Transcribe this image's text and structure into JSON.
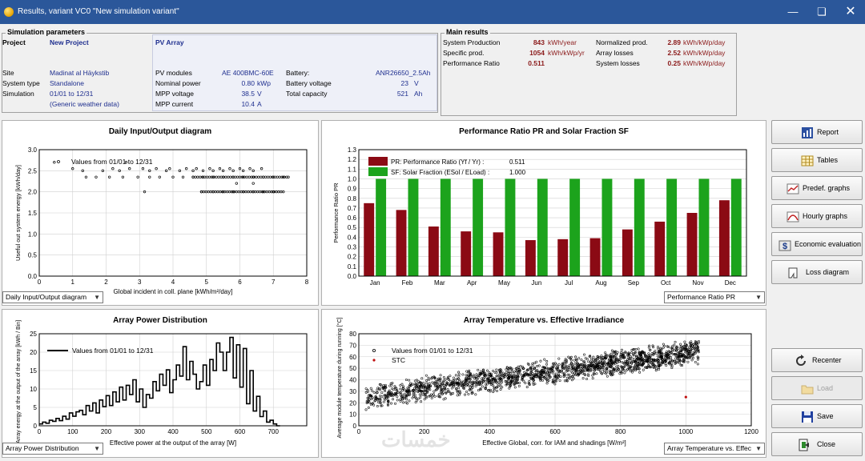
{
  "window": {
    "title": "Results, variant VC0  \"New simulation variant\""
  },
  "sim_params": {
    "legend": "Simulation parameters",
    "project_label": "Project",
    "project_value": "New Project",
    "site_label": "Site",
    "site_value": "Madinat al Häykstib",
    "system_type_label": "System type",
    "system_type_value": "Standalone",
    "simulation_label": "Simulation",
    "simulation_value": "01/01 to 12/31",
    "weather_value": "(Generic weather data)"
  },
  "pv_array": {
    "title": "PV Array",
    "modules_label": "PV modules",
    "modules_value": "AE 400BMC-60E",
    "nominal_power_label": "Nominal power",
    "nominal_power_value": "0.80",
    "nominal_power_unit": "kWp",
    "mpp_voltage_label": "MPP voltage",
    "mpp_voltage_value": "38.5",
    "mpp_voltage_unit": "V",
    "mpp_current_label": "MPP current",
    "mpp_current_value": "10.4",
    "mpp_current_unit": "A",
    "battery_label": "Battery:",
    "battery_value": "ANR26650_2.5Ah",
    "battery_voltage_label": "Battery voltage",
    "battery_voltage_value": "23",
    "battery_voltage_unit": "V",
    "total_capacity_label": "Total capacity",
    "total_capacity_value": "521",
    "total_capacity_unit": "Ah"
  },
  "main_results": {
    "legend": "Main results",
    "system_production_label": "System Production",
    "system_production_value": "843",
    "system_production_unit": "kWh/year",
    "specific_prod_label": "Specific prod.",
    "specific_prod_value": "1054",
    "specific_prod_unit": "kWh/kWp/yr",
    "performance_ratio_label": "Performance Ratio",
    "performance_ratio_value": "0.511",
    "normalized_prod_label": "Normalized prod.",
    "normalized_prod_value": "2.89",
    "normalized_prod_unit": "kWh/kWp/day",
    "array_losses_label": "Array losses",
    "array_losses_value": "2.52",
    "array_losses_unit": "kWh/kWp/day",
    "system_losses_label": "System losses",
    "system_losses_value": "0.25",
    "system_losses_unit": "kWh/kWp/day"
  },
  "charts": {
    "daily": {
      "title": "Daily Input/Output diagram",
      "legend": "Values from 01/01 to 12/31",
      "xlabel": "Global incident in coll. plane [kWh/m²/day]",
      "ylabel": "Useful out system energy [kWh/day]",
      "combo": "Daily Input/Output diagram"
    },
    "pr": {
      "title": "Performance Ratio PR  and Solar Fraction SF",
      "legend_pr": "PR: Performance Ratio (Yf / Yr) :",
      "legend_pr_value": "0.511",
      "legend_sf": "SF: Solar Fraction (ESol / ELoad) :",
      "legend_sf_value": "1.000",
      "ylabel": "Performance Ratio PR",
      "combo": "Performance Ratio PR"
    },
    "power": {
      "title": "Array Power Distribution",
      "legend": "Values from 01/01 to 12/31",
      "xlabel": "Effective power at the output of the array [W]",
      "ylabel": "Array energy at the output of the array [kWh / Bin]",
      "combo": "Array Power Distribution"
    },
    "temp": {
      "title": "Array Temperature vs. Effective Irradiance",
      "legend_values": "Values from 01/01 to 12/31",
      "legend_stc": "STC",
      "xlabel": "Effective Global, corr. for IAM and shadings [W/m²]",
      "ylabel": "Average module temperature during running [°C]",
      "combo": "Array Temperature vs. Effec"
    }
  },
  "chart_data": [
    {
      "type": "scatter",
      "title": "Daily Input/Output diagram",
      "xlabel": "Global incident in coll. plane [kWh/m²/day]",
      "ylabel": "Useful out system energy [kWh/day]",
      "xlim": [
        0,
        8
      ],
      "ylim": [
        0,
        3.0
      ],
      "xticks": [
        0,
        1,
        2,
        3,
        4,
        5,
        6,
        7,
        8
      ],
      "yticks": [
        0,
        0.5,
        1.0,
        1.5,
        2.0,
        2.5,
        3.0
      ],
      "legend": [
        "Values from 01/01 to 12/31"
      ],
      "levels": [
        {
          "y": 2.7,
          "x": [
            0.45,
            2.6
          ]
        },
        {
          "y": 2.55,
          "x": [
            1.0,
            2.2,
            2.7,
            3.1,
            3.5,
            3.9,
            4.4,
            4.7,
            5.1,
            5.4,
            5.7,
            6.0,
            6.3,
            6.65
          ]
        },
        {
          "y": 2.5,
          "x": [
            1.3,
            1.9,
            2.4,
            3.3,
            3.8,
            4.2,
            4.6,
            4.9,
            5.2,
            5.5,
            5.8,
            6.1,
            6.4
          ]
        },
        {
          "y": 2.35,
          "x": [
            1.4,
            1.7,
            2.1,
            2.5,
            2.95,
            3.3,
            3.6,
            4.0,
            4.3,
            4.6,
            4.9,
            5.2,
            5.5,
            5.8,
            6.1,
            6.4,
            6.7,
            7.0,
            7.3,
            7.45
          ]
        },
        {
          "y": 2.2,
          "x": [
            5.9,
            6.4
          ]
        },
        {
          "y": 2.0,
          "x": [
            3.15,
            4.85,
            5.2,
            5.5,
            5.8,
            6.1,
            6.4,
            6.7,
            7.0,
            7.3
          ]
        }
      ]
    },
    {
      "type": "bar",
      "title": "Performance Ratio PR  and Solar Fraction SF",
      "categories": [
        "Jan",
        "Feb",
        "Mar",
        "Apr",
        "May",
        "Jun",
        "Jul",
        "Aug",
        "Sep",
        "Oct",
        "Nov",
        "Dec"
      ],
      "series": [
        {
          "name": "PR: Performance Ratio (Yf / Yr)",
          "values": [
            0.75,
            0.68,
            0.51,
            0.46,
            0.45,
            0.37,
            0.38,
            0.39,
            0.48,
            0.56,
            0.65,
            0.78
          ],
          "color": "#8b0a14"
        },
        {
          "name": "SF: Solar Fraction (ESol / ELoad)",
          "values": [
            1,
            1,
            1,
            1,
            1,
            1,
            1,
            1,
            1,
            1,
            1,
            1
          ],
          "color": "#1ca31c"
        }
      ],
      "ylabel": "Performance Ratio PR",
      "ylim": [
        0,
        1.3
      ],
      "yticks": [
        0,
        0.1,
        0.2,
        0.3,
        0.4,
        0.5,
        0.6,
        0.7,
        0.8,
        0.9,
        1.0,
        1.1,
        1.2,
        1.3
      ]
    },
    {
      "type": "line",
      "title": "Array Power Distribution",
      "xlabel": "Effective power at the output of the array [W]",
      "ylabel": "Array energy at the output of the array [kWh / Bin]",
      "xlim": [
        0,
        800
      ],
      "ylim": [
        0,
        25
      ],
      "xticks": [
        0,
        100,
        200,
        300,
        400,
        500,
        600,
        700
      ],
      "yticks": [
        0,
        5,
        10,
        15,
        20,
        25
      ],
      "legend": [
        "Values from 01/01 to 12/31"
      ],
      "x": [
        0,
        10,
        20,
        30,
        40,
        50,
        60,
        70,
        80,
        90,
        100,
        110,
        120,
        130,
        140,
        150,
        160,
        170,
        180,
        190,
        200,
        210,
        220,
        230,
        240,
        250,
        260,
        270,
        280,
        290,
        300,
        310,
        320,
        330,
        340,
        350,
        360,
        370,
        380,
        390,
        400,
        410,
        420,
        430,
        440,
        450,
        460,
        470,
        480,
        490,
        500,
        510,
        520,
        530,
        540,
        550,
        560,
        570,
        580,
        590,
        600,
        610,
        620,
        630,
        640,
        650,
        660,
        670,
        680,
        690,
        700,
        710
      ],
      "values": [
        0.5,
        1,
        0.7,
        1.5,
        1.2,
        2,
        1.4,
        2.6,
        1.8,
        3.5,
        2.6,
        3.8,
        4.2,
        3.0,
        5.5,
        4.0,
        6.2,
        3.5,
        7.0,
        5.2,
        8.2,
        5.5,
        9.2,
        6.5,
        10.5,
        7.0,
        11.0,
        8.5,
        12.5,
        6.5,
        10.0,
        5.0,
        8.5,
        7.5,
        12.0,
        9.5,
        14.0,
        11.0,
        15.2,
        9.0,
        12.5,
        16.5,
        13.5,
        21.5,
        12.5,
        17.5,
        14.0,
        10.0,
        12.0,
        16.5,
        11.0,
        18.0,
        15.0,
        22.5,
        20.0,
        15.0,
        20.0,
        24.0,
        13.0,
        22.0,
        10.5,
        21.0,
        6.0,
        15.0,
        4.0,
        8.0,
        2.5,
        4.0,
        1.0,
        1.5,
        0.5,
        0.0
      ]
    },
    {
      "type": "scatter",
      "title": "Array Temperature vs. Effective Irradiance",
      "xlabel": "Effective Global, corr. for IAM and shadings [W/m²]",
      "ylabel": "Average module temperature during running [°C]",
      "xlim": [
        0,
        1200
      ],
      "ylim": [
        0,
        80
      ],
      "xticks": [
        0,
        200,
        400,
        600,
        800,
        1000,
        1200
      ],
      "yticks": [
        0,
        10,
        20,
        30,
        40,
        50,
        60,
        70,
        80
      ],
      "legend": [
        "Values from 01/01 to 12/31",
        "STC"
      ],
      "trend": {
        "from": [
          20,
          25
        ],
        "to": [
          1000,
          63
        ],
        "spread": 12,
        "count": 1800
      },
      "stc": {
        "x": 1000,
        "y": 25
      }
    }
  ],
  "sidebar": {
    "report": "Report",
    "tables": "Tables",
    "predef": "Predef. graphs",
    "hourly": "Hourly graphs",
    "economic": "Economic evaluation",
    "loss": "Loss diagram",
    "recenter": "Recenter",
    "load": "Load",
    "save": "Save",
    "close": "Close"
  },
  "watermark": "خمسات"
}
